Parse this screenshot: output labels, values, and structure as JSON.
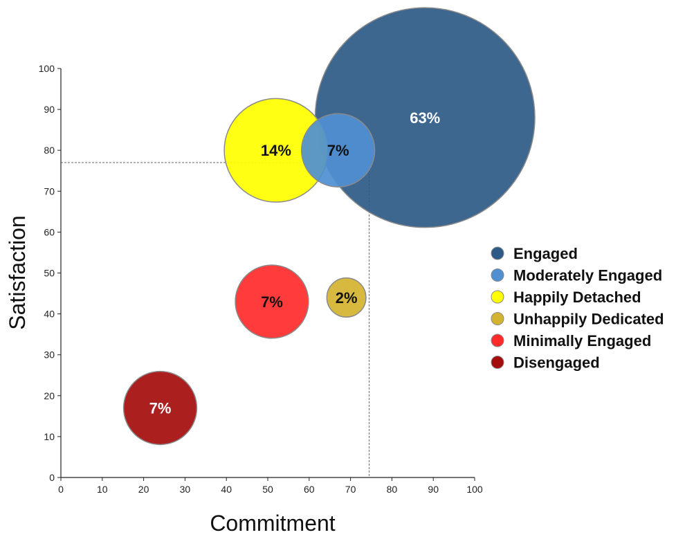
{
  "chart_data": {
    "type": "scatter",
    "subtype": "bubble",
    "xlabel": "Commitment",
    "ylabel": "Satisfaction",
    "xlim": [
      0,
      100
    ],
    "ylim": [
      0,
      100
    ],
    "xticks": [
      "0",
      "10",
      "20",
      "30",
      "40",
      "50",
      "60",
      "70",
      "80",
      "90",
      "100"
    ],
    "yticks": [
      "0",
      "10",
      "20",
      "30",
      "40",
      "50",
      "60",
      "70",
      "80",
      "90",
      "100"
    ],
    "grid": false,
    "legend_position": "right",
    "reference_lines": {
      "x": 74.5,
      "y": 77,
      "style": "dashed"
    },
    "series": [
      {
        "name": "Engaged",
        "x": 88,
        "y": 88,
        "size_label": "63%",
        "size": 63,
        "color": "#2E5A87",
        "label_color": "#ffffff"
      },
      {
        "name": "Moderately Engaged",
        "x": 67,
        "y": 80,
        "size_label": "7%",
        "size": 7,
        "color": "#4F8FD2",
        "label_color": "#111111"
      },
      {
        "name": "Happily Detached",
        "x": 52,
        "y": 80,
        "size_label": "14%",
        "size": 14,
        "color": "#FFFF00",
        "label_color": "#111111"
      },
      {
        "name": "Unhappily Dedicated",
        "x": 69,
        "y": 44,
        "size_label": "2%",
        "size": 2,
        "color": "#D4B32F",
        "label_color": "#111111"
      },
      {
        "name": "Minimally Engaged",
        "x": 51,
        "y": 43,
        "size_label": "7%",
        "size": 7,
        "color": "#FF2A2A",
        "label_color": "#111111"
      },
      {
        "name": "Disengaged",
        "x": 24,
        "y": 17,
        "size_label": "7%",
        "size": 7,
        "color": "#A50C0C",
        "label_color": "#ffffff"
      }
    ]
  }
}
